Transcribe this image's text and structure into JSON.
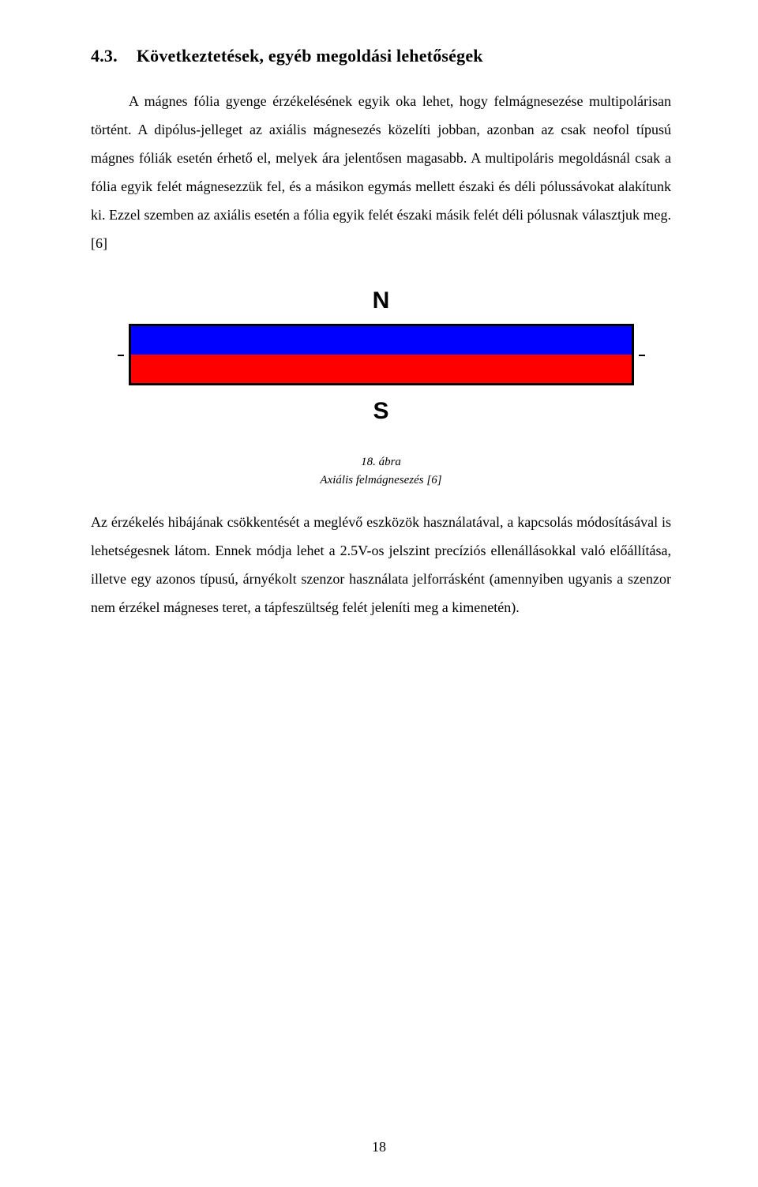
{
  "heading": {
    "number": "4.3.",
    "text": "Következtetések, egyéb megoldási lehetőségek"
  },
  "paragraphs": {
    "p1": "A mágnes fólia gyenge érzékelésének egyik oka lehet, hogy felmágnesezése multipolárisan történt. A dipólus-jelleget az axiális mágnesezés közelíti jobban, azonban az csak neofol típusú mágnes fóliák esetén érhető el, melyek ára jelentősen magasabb. A multipoláris megoldásnál csak a fólia egyik felét mágnesezzük fel, és a másikon egymás mellett északi és déli pólussávokat alakítunk ki. Ezzel szemben az axiális esetén a fólia egyik felét északi másik felét déli pólusnak választjuk meg. [6]",
    "p2": "Az érzékelés hibájának csökkentését a meglévő eszközök használatával, a kapcsolás módosításával is lehetségesnek látom. Ennek módja lehet a 2.5V-os jelszint precíziós ellenállásokkal való előállítása, illetve egy azonos típusú, árnyékolt szenzor használata jelforrásként (amennyiben ugyanis a szenzor nem érzékel mágneses teret, a tápfeszültség felét jeleníti meg a kimenetén)."
  },
  "figure": {
    "north_label": "N",
    "south_label": "S",
    "north_color": "#0000ff",
    "south_color": "#ff0000",
    "border_color": "#000000",
    "caption_line1": "18. ábra",
    "caption_line2": "Axiális felmágnesezés [6]"
  },
  "page_number": "18"
}
